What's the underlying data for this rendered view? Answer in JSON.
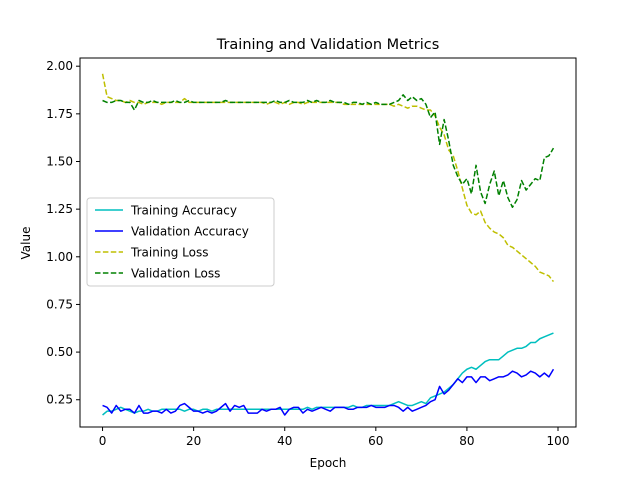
{
  "chart_data": {
    "type": "line",
    "title": "Training and Validation Metrics",
    "xlabel": "Epoch",
    "ylabel": "Value",
    "xlim": [
      -4.95,
      103.95
    ],
    "ylim": [
      0.107,
      2.043
    ],
    "x_ticks": [
      0,
      20,
      40,
      60,
      80,
      100
    ],
    "y_ticks": [
      0.25,
      0.5,
      0.75,
      1.0,
      1.25,
      1.5,
      1.75,
      2.0
    ],
    "grid": false,
    "legend_placement": "center-left",
    "series": [
      {
        "name": "Training Accuracy",
        "color": "#00bfbf",
        "dash": "solid",
        "values": [
          0.17,
          0.19,
          0.19,
          0.2,
          0.21,
          0.2,
          0.19,
          0.18,
          0.19,
          0.19,
          0.2,
          0.19,
          0.19,
          0.2,
          0.2,
          0.2,
          0.2,
          0.2,
          0.19,
          0.2,
          0.2,
          0.19,
          0.2,
          0.2,
          0.19,
          0.2,
          0.2,
          0.2,
          0.2,
          0.2,
          0.2,
          0.2,
          0.2,
          0.2,
          0.2,
          0.2,
          0.2,
          0.2,
          0.2,
          0.2,
          0.2,
          0.2,
          0.2,
          0.2,
          0.2,
          0.21,
          0.2,
          0.21,
          0.21,
          0.21,
          0.21,
          0.21,
          0.21,
          0.21,
          0.21,
          0.22,
          0.21,
          0.21,
          0.22,
          0.22,
          0.22,
          0.22,
          0.22,
          0.22,
          0.23,
          0.24,
          0.23,
          0.22,
          0.22,
          0.23,
          0.24,
          0.23,
          0.26,
          0.27,
          0.28,
          0.29,
          0.31,
          0.33,
          0.36,
          0.39,
          0.41,
          0.42,
          0.41,
          0.43,
          0.45,
          0.46,
          0.46,
          0.46,
          0.48,
          0.5,
          0.51,
          0.52,
          0.52,
          0.53,
          0.55,
          0.55,
          0.57,
          0.58,
          0.59,
          0.6
        ]
      },
      {
        "name": "Validation Accuracy",
        "color": "#0000ff",
        "dash": "solid",
        "values": [
          0.22,
          0.21,
          0.18,
          0.22,
          0.19,
          0.2,
          0.2,
          0.18,
          0.22,
          0.18,
          0.18,
          0.19,
          0.19,
          0.18,
          0.2,
          0.18,
          0.19,
          0.22,
          0.23,
          0.21,
          0.19,
          0.19,
          0.18,
          0.19,
          0.18,
          0.19,
          0.21,
          0.23,
          0.19,
          0.22,
          0.21,
          0.22,
          0.18,
          0.18,
          0.18,
          0.2,
          0.19,
          0.2,
          0.2,
          0.21,
          0.17,
          0.2,
          0.21,
          0.21,
          0.18,
          0.2,
          0.19,
          0.2,
          0.21,
          0.2,
          0.19,
          0.21,
          0.21,
          0.21,
          0.2,
          0.2,
          0.21,
          0.21,
          0.21,
          0.22,
          0.21,
          0.21,
          0.21,
          0.22,
          0.22,
          0.21,
          0.19,
          0.21,
          0.19,
          0.2,
          0.21,
          0.22,
          0.24,
          0.25,
          0.32,
          0.28,
          0.3,
          0.33,
          0.36,
          0.34,
          0.37,
          0.37,
          0.34,
          0.37,
          0.37,
          0.35,
          0.36,
          0.37,
          0.37,
          0.38,
          0.4,
          0.39,
          0.37,
          0.38,
          0.4,
          0.39,
          0.37,
          0.39,
          0.37,
          0.41
        ]
      },
      {
        "name": "Training Loss",
        "color": "#bfbf00",
        "dash": "dashed",
        "values": [
          1.96,
          1.84,
          1.83,
          1.82,
          1.82,
          1.81,
          1.82,
          1.81,
          1.81,
          1.8,
          1.81,
          1.81,
          1.81,
          1.8,
          1.81,
          1.81,
          1.81,
          1.81,
          1.83,
          1.81,
          1.81,
          1.81,
          1.81,
          1.81,
          1.81,
          1.81,
          1.81,
          1.81,
          1.81,
          1.81,
          1.81,
          1.81,
          1.81,
          1.81,
          1.81,
          1.81,
          1.8,
          1.81,
          1.81,
          1.8,
          1.81,
          1.8,
          1.81,
          1.81,
          1.8,
          1.81,
          1.81,
          1.81,
          1.81,
          1.81,
          1.81,
          1.81,
          1.81,
          1.8,
          1.8,
          1.8,
          1.8,
          1.8,
          1.8,
          1.8,
          1.8,
          1.8,
          1.8,
          1.8,
          1.79,
          1.8,
          1.79,
          1.78,
          1.79,
          1.79,
          1.78,
          1.77,
          1.77,
          1.74,
          1.68,
          1.64,
          1.56,
          1.53,
          1.45,
          1.36,
          1.27,
          1.23,
          1.22,
          1.24,
          1.18,
          1.15,
          1.13,
          1.12,
          1.1,
          1.06,
          1.05,
          1.03,
          1.01,
          0.99,
          0.97,
          0.95,
          0.92,
          0.91,
          0.9,
          0.87
        ]
      },
      {
        "name": "Validation Loss",
        "color": "#008000",
        "dash": "dashed",
        "values": [
          1.82,
          1.81,
          1.81,
          1.82,
          1.82,
          1.81,
          1.81,
          1.77,
          1.82,
          1.81,
          1.81,
          1.82,
          1.81,
          1.81,
          1.81,
          1.81,
          1.82,
          1.81,
          1.81,
          1.82,
          1.81,
          1.81,
          1.81,
          1.81,
          1.81,
          1.81,
          1.81,
          1.82,
          1.81,
          1.81,
          1.81,
          1.81,
          1.81,
          1.81,
          1.81,
          1.81,
          1.81,
          1.81,
          1.82,
          1.81,
          1.81,
          1.82,
          1.81,
          1.81,
          1.81,
          1.82,
          1.81,
          1.82,
          1.81,
          1.81,
          1.82,
          1.81,
          1.81,
          1.81,
          1.8,
          1.81,
          1.81,
          1.8,
          1.81,
          1.8,
          1.81,
          1.8,
          1.8,
          1.8,
          1.81,
          1.82,
          1.85,
          1.82,
          1.84,
          1.82,
          1.83,
          1.8,
          1.73,
          1.76,
          1.59,
          1.72,
          1.61,
          1.48,
          1.42,
          1.38,
          1.41,
          1.33,
          1.48,
          1.34,
          1.28,
          1.38,
          1.45,
          1.32,
          1.4,
          1.31,
          1.26,
          1.3,
          1.4,
          1.35,
          1.38,
          1.41,
          1.4,
          1.52,
          1.53,
          1.57
        ]
      }
    ]
  }
}
